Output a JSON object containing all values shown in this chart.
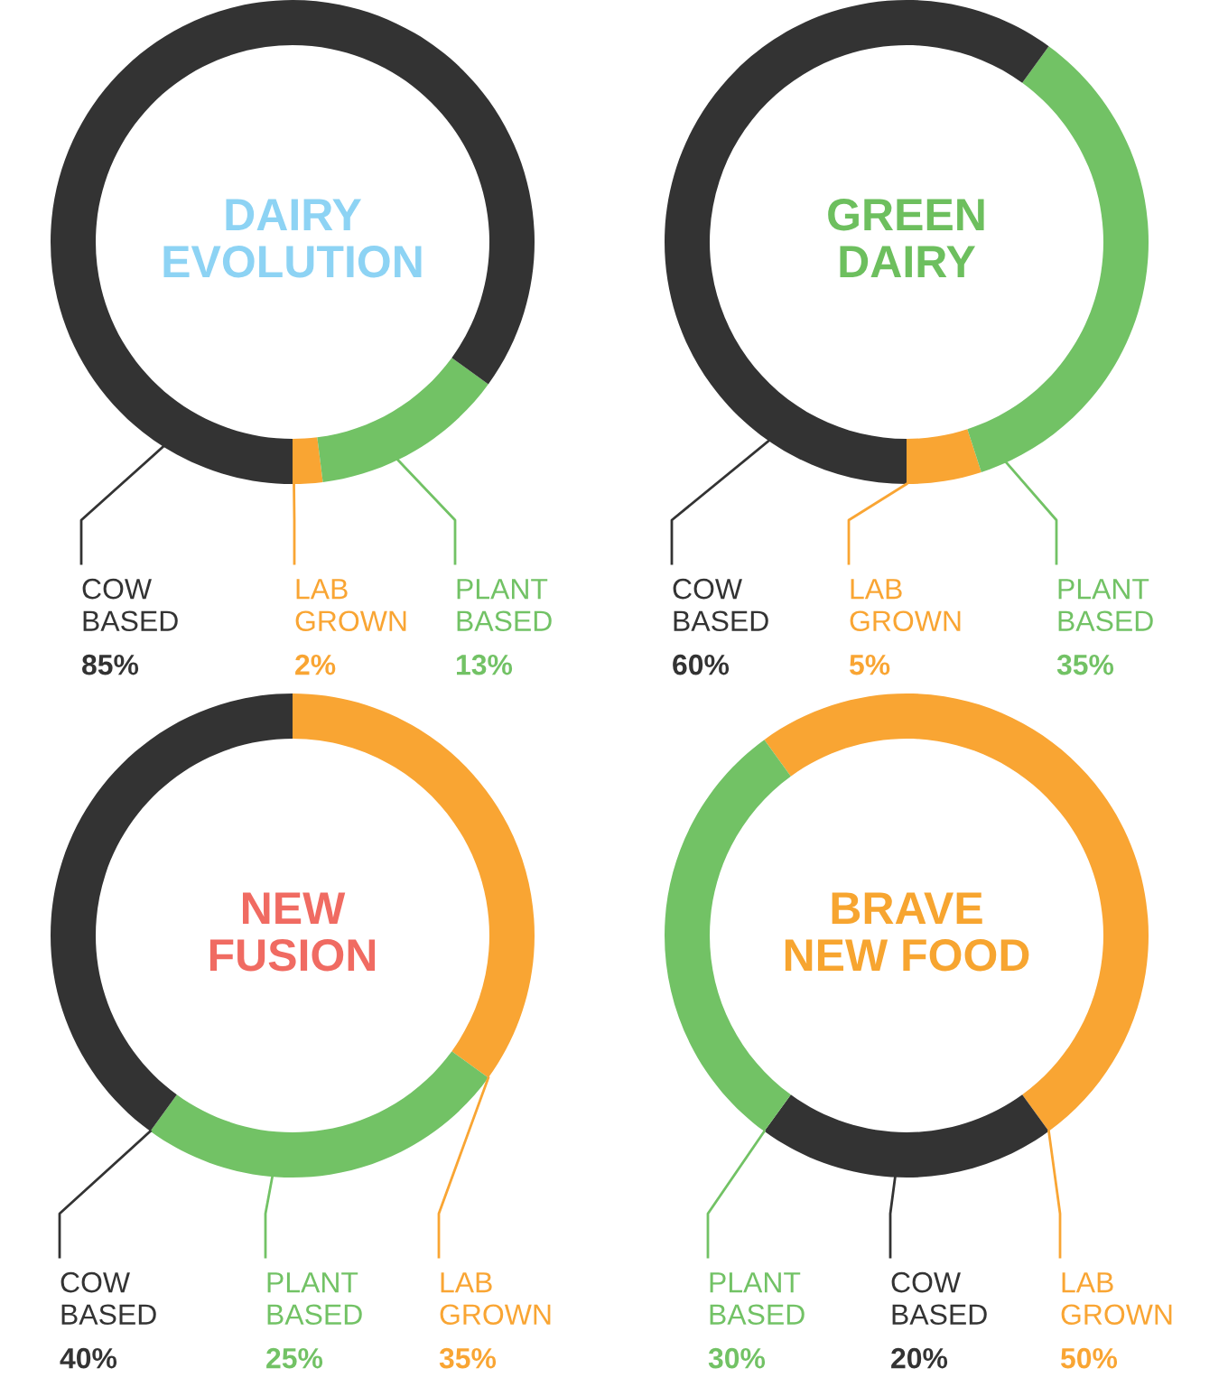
{
  "chart_data": [
    {
      "type": "donut",
      "title": "DAIRY\nEVOLUTION",
      "categories": [
        "COW\nBASED",
        "LAB\nGROWN",
        "PLANT\nBASED"
      ],
      "values": [
        85,
        2,
        13
      ],
      "colors": [
        "#333333",
        "#f9a533",
        "#72c265"
      ],
      "value_labels": [
        "85%",
        "2%",
        "13%"
      ]
    },
    {
      "type": "donut",
      "title": "GREEN\nDAIRY",
      "categories": [
        "COW\nBASED",
        "LAB\nGROWN",
        "PLANT\nBASED"
      ],
      "values": [
        60,
        5,
        35
      ],
      "colors": [
        "#333333",
        "#f9a533",
        "#72c265"
      ],
      "value_labels": [
        "60%",
        "5%",
        "35%"
      ]
    },
    {
      "type": "donut",
      "title": "NEW\nFUSION",
      "categories": [
        "COW\nBASED",
        "PLANT\nBASED",
        "LAB\nGROWN"
      ],
      "values": [
        40,
        25,
        35
      ],
      "colors": [
        "#333333",
        "#72c265",
        "#f9a533"
      ],
      "value_labels": [
        "40%",
        "25%",
        "35%"
      ]
    },
    {
      "type": "donut",
      "title": "BRAVE\nNEW FOOD",
      "categories": [
        "PLANT\nBASED",
        "COW\nBASED",
        "LAB\nGROWN"
      ],
      "values": [
        30,
        20,
        50
      ],
      "colors": [
        "#72c265",
        "#333333",
        "#f9a533"
      ],
      "value_labels": [
        "30%",
        "20%",
        "50%"
      ]
    }
  ]
}
